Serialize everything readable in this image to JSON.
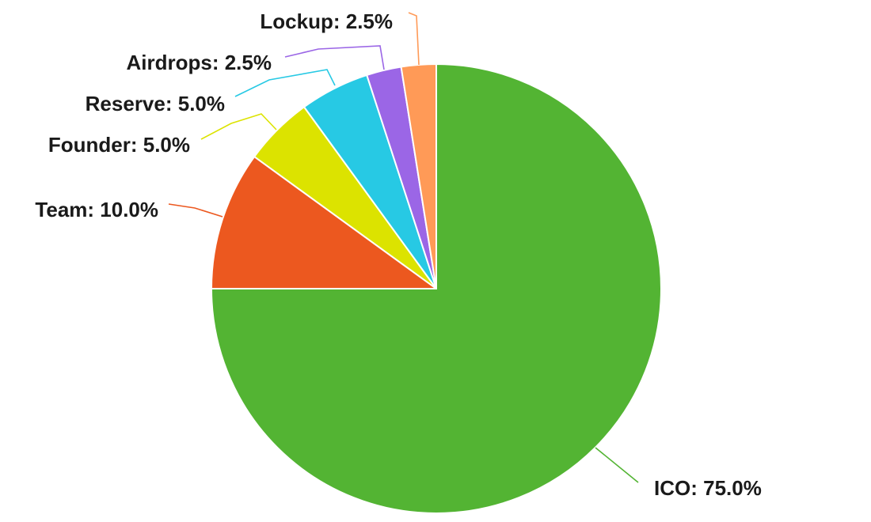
{
  "chart_data": {
    "type": "pie",
    "title": "",
    "start": "top, clockwise",
    "slices": [
      {
        "name": "ICO",
        "value": 75.0,
        "color": "#53b433",
        "label": "ICO: 75.0%"
      },
      {
        "name": "Team",
        "value": 10.0,
        "color": "#ec581f",
        "label": "Team: 10.0%"
      },
      {
        "name": "Founder",
        "value": 5.0,
        "color": "#dce300",
        "label": "Founder: 5.0%"
      },
      {
        "name": "Reserve",
        "value": 5.0,
        "color": "#27c9e4",
        "label": "Reserve: 5.0%"
      },
      {
        "name": "Airdrops",
        "value": 2.5,
        "color": "#9b66e6",
        "label": "Airdrops: 2.5%"
      },
      {
        "name": "Lockup",
        "value": 2.5,
        "color": "#ff9a57",
        "label": "Lockup: 2.5%"
      }
    ]
  }
}
